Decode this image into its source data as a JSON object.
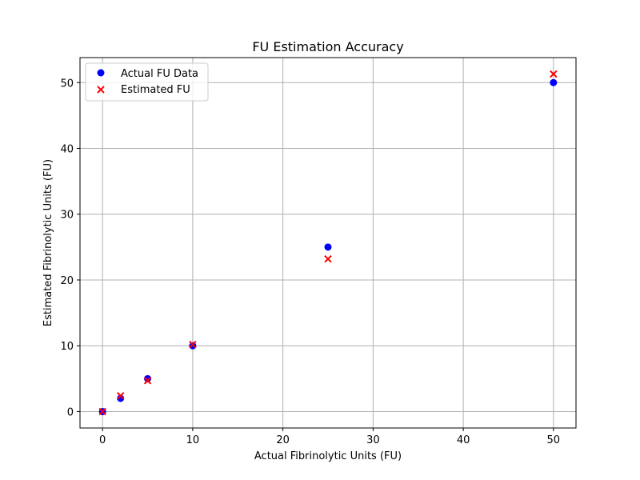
{
  "chart_data": {
    "type": "scatter",
    "title": "FU Estimation Accuracy",
    "xlabel": "Actual Fibrinolytic Units (FU)",
    "ylabel": "Estimated Fibrinolytic Units (FU)",
    "xlim": [
      -2.5,
      52.5
    ],
    "ylim": [
      -2.5,
      53.8
    ],
    "xticks": [
      0,
      10,
      20,
      30,
      40,
      50
    ],
    "yticks": [
      0,
      10,
      20,
      30,
      40,
      50
    ],
    "grid": true,
    "legend_position": "top-left",
    "series": [
      {
        "name": "Actual FU Data",
        "marker": "circle",
        "color": "#0000ff",
        "x": [
          0,
          2,
          5,
          10,
          25,
          50
        ],
        "y": [
          0,
          2,
          5,
          10,
          25,
          50
        ]
      },
      {
        "name": "Estimated FU",
        "marker": "x",
        "color": "#ff0000",
        "x": [
          0,
          2,
          5,
          10,
          25,
          50
        ],
        "y": [
          0.0,
          2.4,
          4.7,
          10.2,
          23.2,
          51.3
        ]
      }
    ]
  }
}
